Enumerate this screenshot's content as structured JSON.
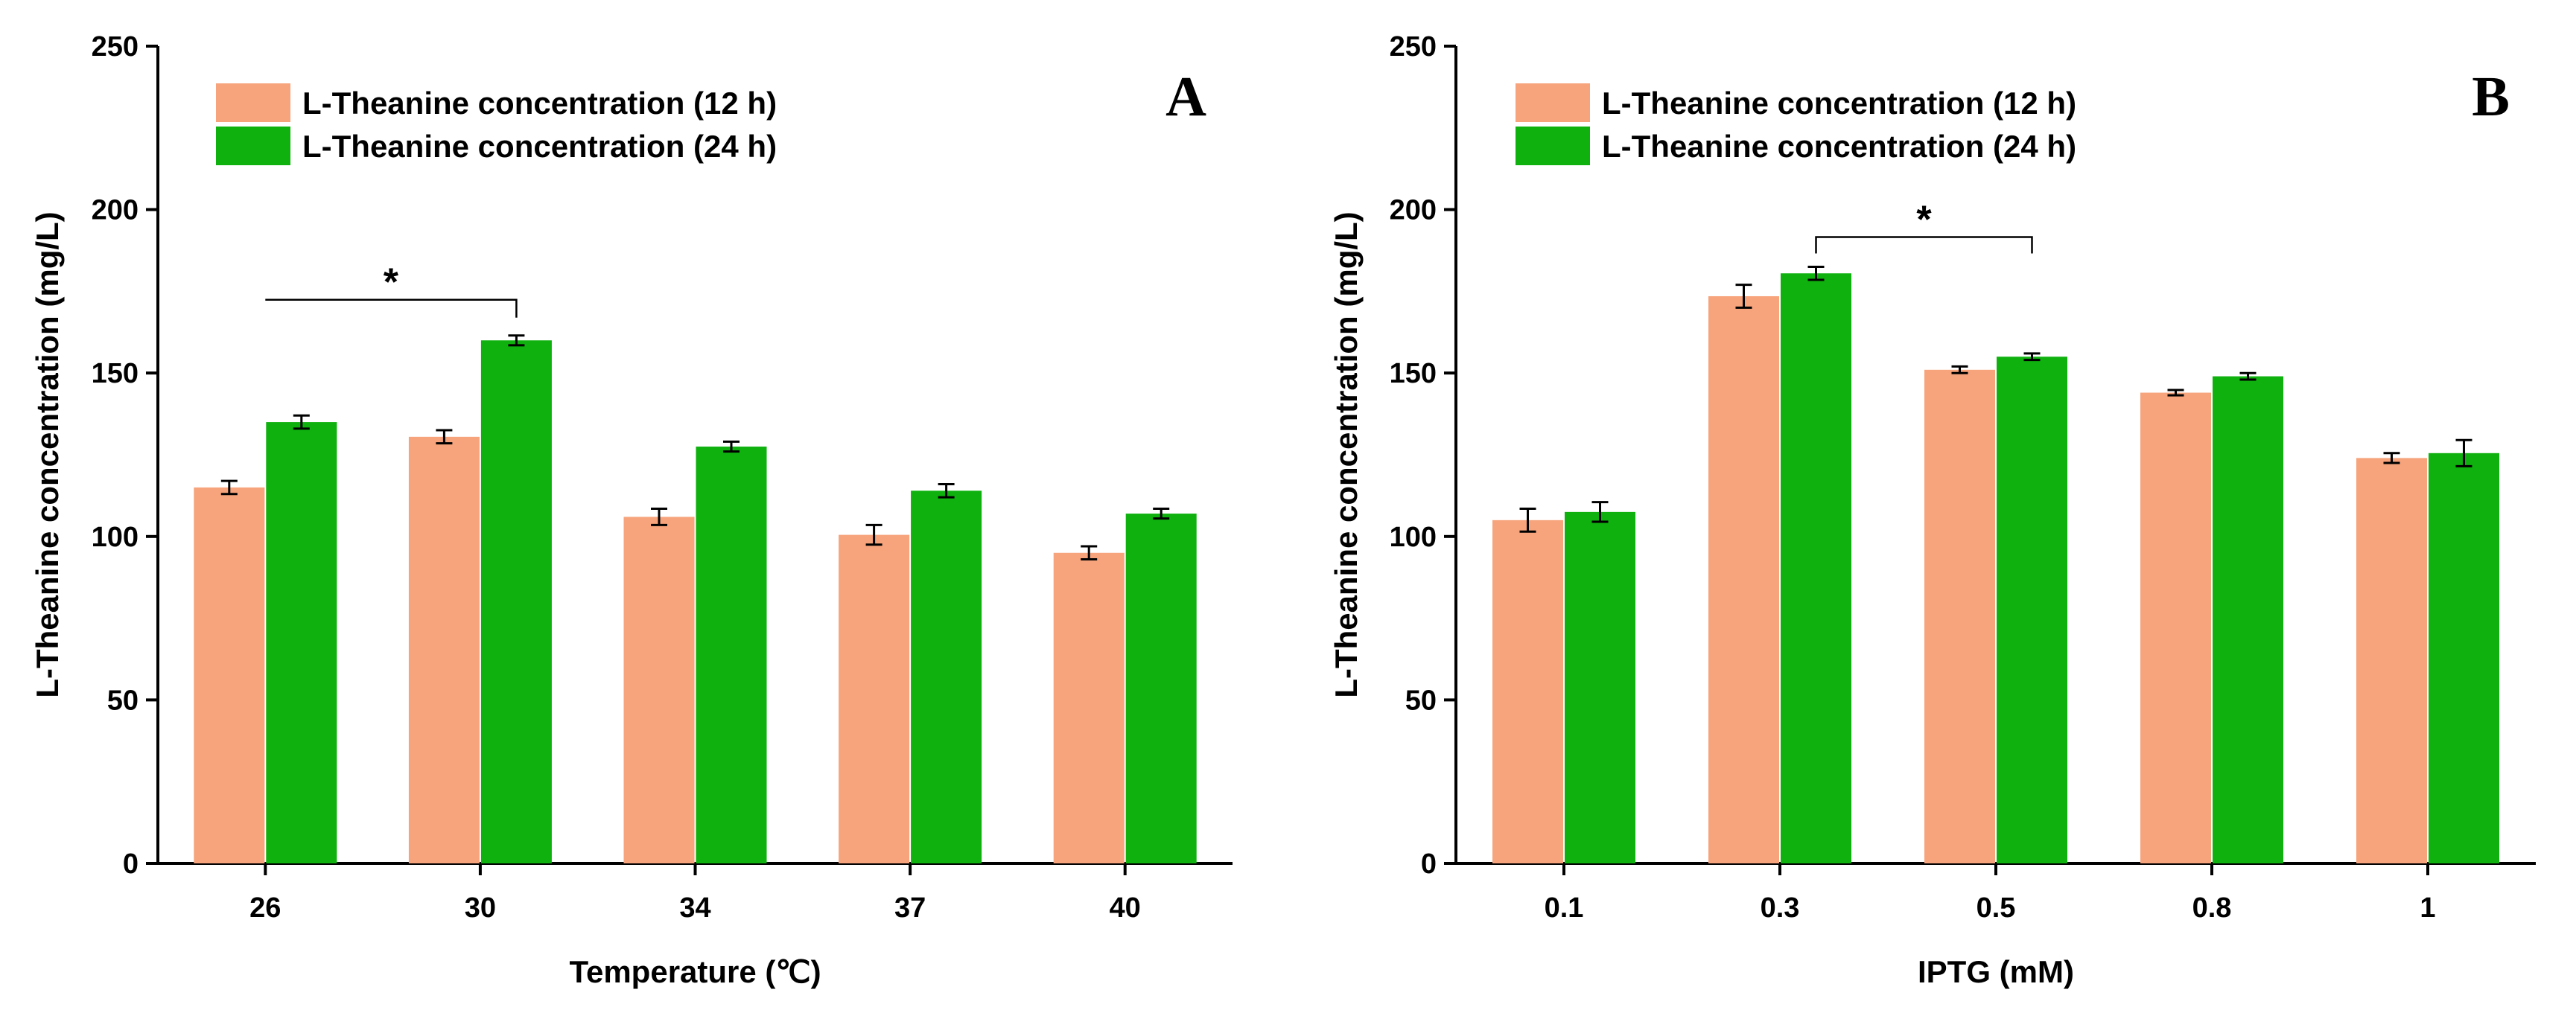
{
  "chart_data": [
    {
      "type": "bar",
      "panel_label": "A",
      "categories": [
        "26",
        "30",
        "34",
        "37",
        "40"
      ],
      "series": [
        {
          "name": "L-Theanine concentration (12 h)",
          "color": "#F7A47C",
          "values": [
            115,
            130.5,
            106,
            100.5,
            95
          ],
          "errors": [
            2,
            2,
            2.5,
            3,
            2
          ]
        },
        {
          "name": "L-Theanine concentration (24 h)",
          "color": "#0FB10F",
          "values": [
            135,
            160,
            127.5,
            114,
            107
          ],
          "errors": [
            2,
            1.5,
            1.5,
            2,
            1.5
          ]
        }
      ],
      "xlabel": "Temperature (℃)",
      "ylabel": "L-Theanine concentration (mg/L)",
      "ylim": [
        0,
        250
      ],
      "yticks": [
        "0",
        "50",
        "100",
        "150",
        "200",
        "250"
      ],
      "legend_position": "top-left",
      "significance": {
        "label": "*",
        "from_category": "26",
        "to_category": "30"
      }
    },
    {
      "type": "bar",
      "panel_label": "B",
      "categories": [
        "0.1",
        "0.3",
        "0.5",
        "0.8",
        "1"
      ],
      "series": [
        {
          "name": "L-Theanine concentration (12 h)",
          "color": "#F7A47C",
          "values": [
            105,
            173.5,
            151,
            144,
            124
          ],
          "errors": [
            3.5,
            3.5,
            1,
            0.8,
            1.5
          ]
        },
        {
          "name": "L-Theanine concentration (24 h)",
          "color": "#0FB10F",
          "values": [
            107.5,
            180.5,
            155,
            149,
            125.5
          ],
          "errors": [
            3,
            2,
            1,
            1,
            4
          ]
        }
      ],
      "xlabel": "IPTG (mM)",
      "ylabel": "L-Theanine concentration (mg/L)",
      "ylim": [
        0,
        250
      ],
      "yticks": [
        "0",
        "50",
        "100",
        "150",
        "200",
        "250"
      ],
      "legend_position": "top-left",
      "significance": {
        "label": "*",
        "from_category": "0.3",
        "to_category": "0.5"
      }
    }
  ]
}
